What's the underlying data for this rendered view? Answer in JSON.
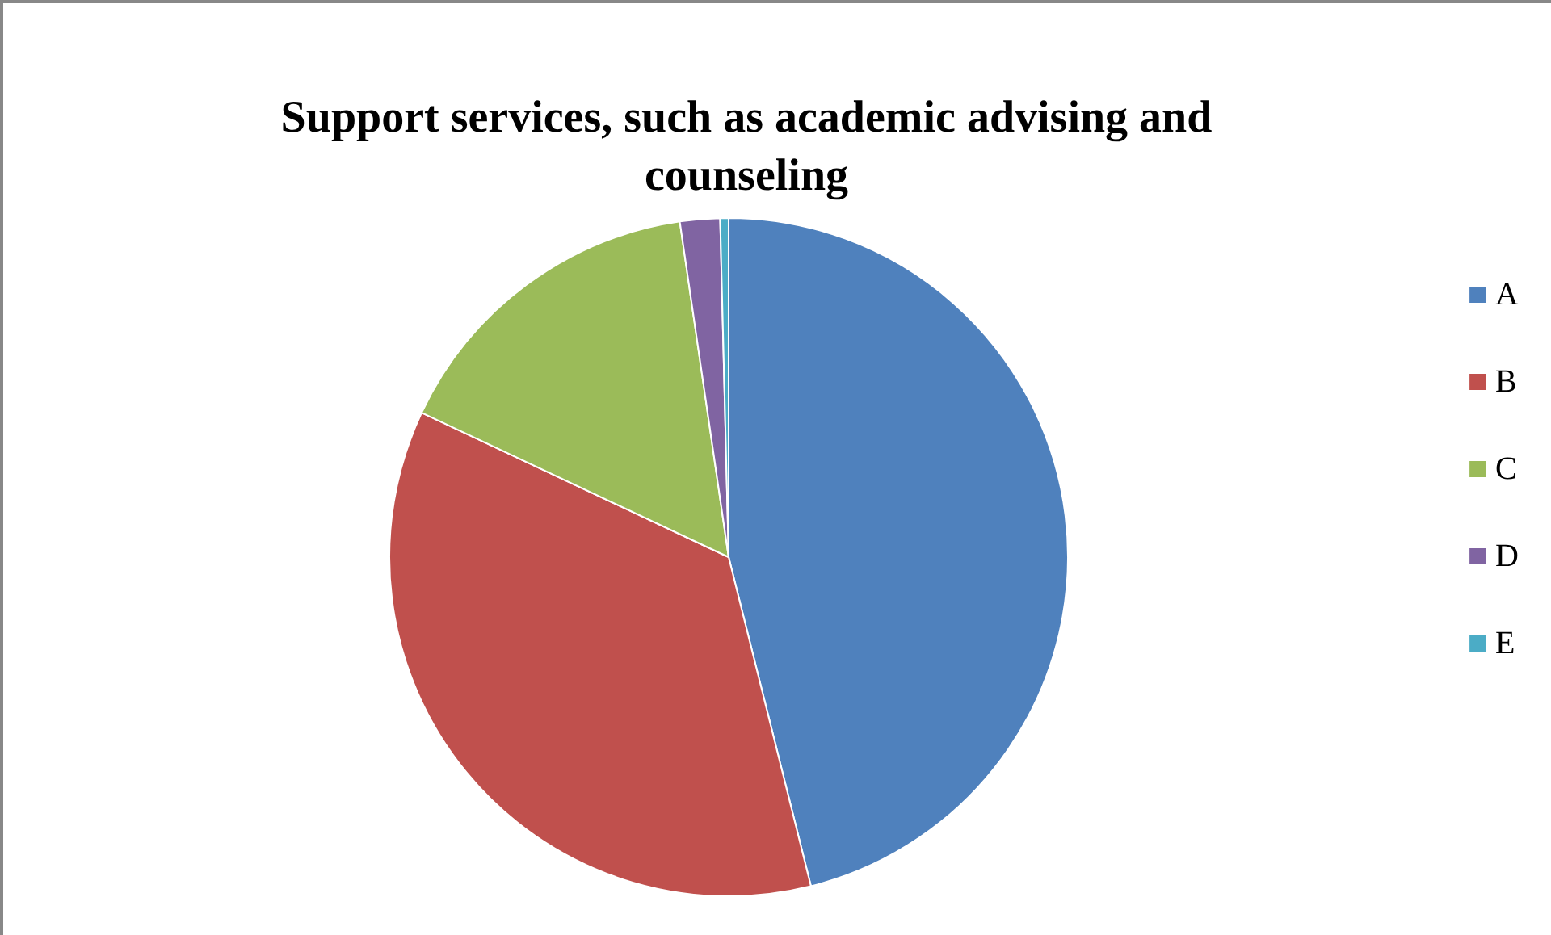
{
  "chart_data": {
    "type": "pie",
    "title": "Support services, such as academic advising and\ncounseling",
    "categories": [
      "A",
      "B",
      "C",
      "D",
      "E"
    ],
    "values": [
      46.1,
      35.9,
      15.7,
      1.9,
      0.4
    ],
    "colors": [
      "#4f81bd",
      "#c0504d",
      "#9bbb59",
      "#8064a2",
      "#4bacc6"
    ],
    "legend": "right"
  }
}
